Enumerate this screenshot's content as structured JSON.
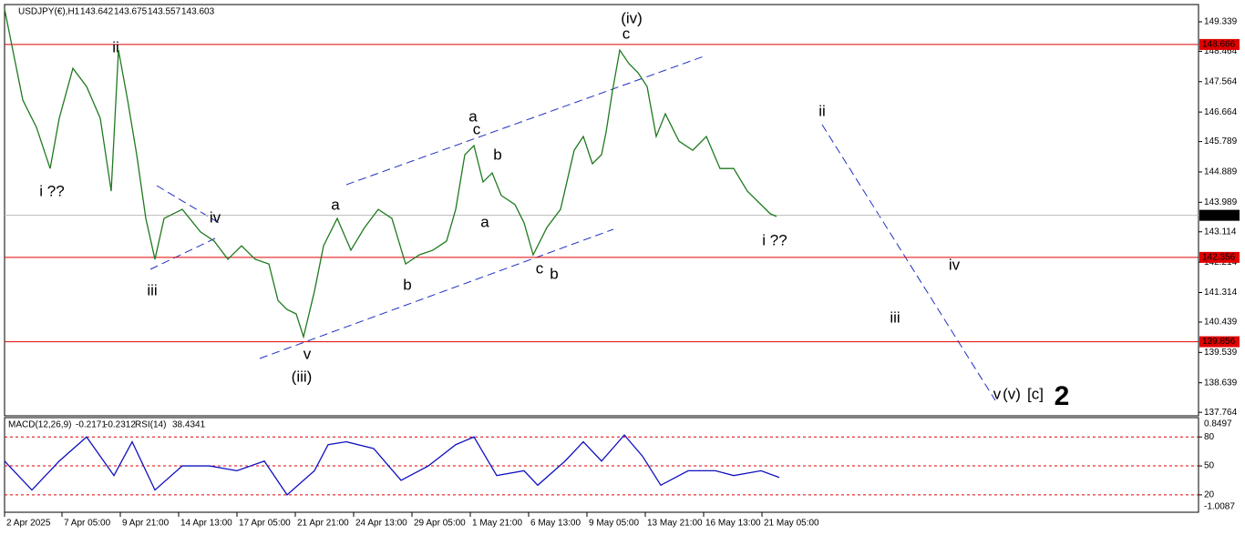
{
  "chart_data": [
    {
      "type": "line",
      "title": "USDJPY(€),H1",
      "ohlc": [
        143.642,
        143.675,
        143.557,
        143.603
      ],
      "x": [
        0,
        10,
        20,
        35,
        50,
        60,
        75,
        90,
        105,
        117,
        125,
        135,
        145,
        155,
        165,
        175,
        195,
        215,
        230,
        245,
        260,
        275,
        290,
        300,
        310,
        320,
        328,
        340,
        350,
        365,
        380,
        395,
        410,
        425,
        440,
        455,
        470,
        485,
        495,
        505,
        515,
        525,
        535,
        545,
        560,
        570,
        580,
        595,
        610,
        625,
        635,
        645,
        655,
        660,
        667,
        675,
        685,
        695,
        705,
        715,
        725,
        740,
        755,
        770,
        785,
        800,
        815,
        830,
        840,
        847
      ],
      "series": [
        {
          "color": "#1f7a1f",
          "values": [
            149.72,
            148.37,
            147.02,
            146.21,
            144.99,
            146.48,
            147.96,
            147.42,
            146.48,
            144.32,
            148.5,
            147.02,
            145.4,
            143.51,
            142.3,
            143.51,
            143.78,
            143.11,
            142.84,
            142.3,
            142.7,
            142.3,
            142.16,
            141.08,
            140.81,
            140.68,
            140.0,
            141.35,
            142.7,
            143.51,
            142.57,
            143.24,
            143.78,
            143.51,
            142.16,
            142.43,
            142.57,
            142.84,
            143.78,
            145.4,
            145.67,
            144.59,
            144.86,
            144.19,
            143.92,
            143.38,
            142.43,
            143.24,
            143.78,
            145.53,
            145.94,
            145.13,
            145.4,
            146.07,
            147.29,
            148.5,
            148.1,
            147.83,
            147.42,
            145.94,
            146.61,
            145.8,
            145.53,
            145.94,
            144.99,
            144.99,
            144.32,
            143.92,
            143.65,
            143.57
          ]
        }
      ],
      "xlim": [
        0,
        1310
      ],
      "ylim": [
        137.66,
        149.85
      ],
      "yticks": [
        149.339,
        148.464,
        147.564,
        146.664,
        145.789,
        144.889,
        143.989,
        143.114,
        142.214,
        141.314,
        140.439,
        139.539,
        138.639,
        137.764
      ],
      "xticks": [
        {
          "value": 0,
          "label": "2 Apr 2025"
        },
        {
          "value": 63,
          "label": "7 Apr 05:00"
        },
        {
          "value": 127,
          "label": "9 Apr 21:00"
        },
        {
          "value": 191,
          "label": "14 Apr 13:00"
        },
        {
          "value": 255,
          "label": "17 Apr 05:00"
        },
        {
          "value": 319,
          "label": "21 Apr 21:00"
        },
        {
          "value": 383,
          "label": "24 Apr 13:00"
        },
        {
          "value": 447,
          "label": "29 Apr 05:00"
        },
        {
          "value": 511,
          "label": "1 May 21:00"
        },
        {
          "value": 575,
          "label": "6 May 13:00"
        },
        {
          "value": 639,
          "label": "9 May 05:00"
        },
        {
          "value": 703,
          "label": "13 May 21:00"
        },
        {
          "value": 767,
          "label": "16 May 13:00"
        },
        {
          "value": 831,
          "label": "21 May 05:00"
        }
      ],
      "levels": [
        {
          "value": 148.666,
          "color": "#e00000"
        },
        {
          "value": 142.356,
          "color": "#e00000"
        },
        {
          "value": 139.856,
          "color": "#e00000"
        }
      ],
      "last_price": 143.603,
      "annotations": [
        {
          "text": "(iv)",
          "color": "#1a1aff"
        },
        {
          "text": "c",
          "color": "#e020e0"
        },
        {
          "text": "ii",
          "color": "#e020e0"
        },
        {
          "text": "i ??",
          "color": "#e020e0"
        },
        {
          "text": "iv",
          "color": "#e020e0"
        },
        {
          "text": "iii",
          "color": "#e020e0"
        },
        {
          "text": "v",
          "color": "#e020e0"
        },
        {
          "text": "(iii)",
          "color": "#1a1aff"
        },
        {
          "text": "a",
          "color": "#000000"
        },
        {
          "text": "b",
          "color": "#000000"
        },
        {
          "text": "a",
          "color": "#e020e0"
        },
        {
          "text": "c",
          "color": "#000000"
        },
        {
          "text": "b",
          "color": "#000000"
        },
        {
          "text": "a",
          "color": "#000000"
        },
        {
          "text": "c",
          "color": "#000000"
        },
        {
          "text": "b",
          "color": "#e020e0"
        },
        {
          "text": "i ??",
          "color": "#e020e0"
        },
        {
          "text": "ii",
          "color": "#e020e0"
        },
        {
          "text": "iv",
          "color": "#e020e0"
        },
        {
          "text": "iii",
          "color": "#e020e0"
        },
        {
          "text": "v",
          "color": "#e020e0"
        },
        {
          "text": "(v)",
          "color": "#1a1aff"
        },
        {
          "text": "[c]",
          "color": "#108010"
        },
        {
          "text": "2",
          "color": "#e00000"
        }
      ]
    },
    {
      "type": "line",
      "title": "MACD(12,26,9)",
      "macd": [
        -0.2171,
        -0.2312
      ],
      "title2": "RSI(14)",
      "rsi_last": 38.4341,
      "x": [
        0,
        30,
        60,
        90,
        120,
        140,
        165,
        195,
        225,
        255,
        285,
        310,
        340,
        355,
        375,
        405,
        435,
        465,
        495,
        515,
        540,
        570,
        585,
        615,
        635,
        655,
        680,
        700,
        720,
        750,
        780,
        800,
        830,
        850
      ],
      "series": [
        {
          "color": "#1010c0",
          "values": [
            55,
            25,
            55,
            80,
            40,
            75,
            25,
            50,
            50,
            45,
            55,
            20,
            45,
            72,
            75,
            68,
            35,
            50,
            72,
            80,
            40,
            45,
            30,
            55,
            75,
            55,
            82,
            60,
            30,
            45,
            45,
            40,
            45,
            38
          ]
        }
      ],
      "xlim": [
        0,
        1310
      ],
      "ylim": [
        2,
        100
      ],
      "yticks": [
        80,
        50,
        20
      ],
      "y2ticks": [
        0.8497,
        -1.0087
      ]
    }
  ]
}
